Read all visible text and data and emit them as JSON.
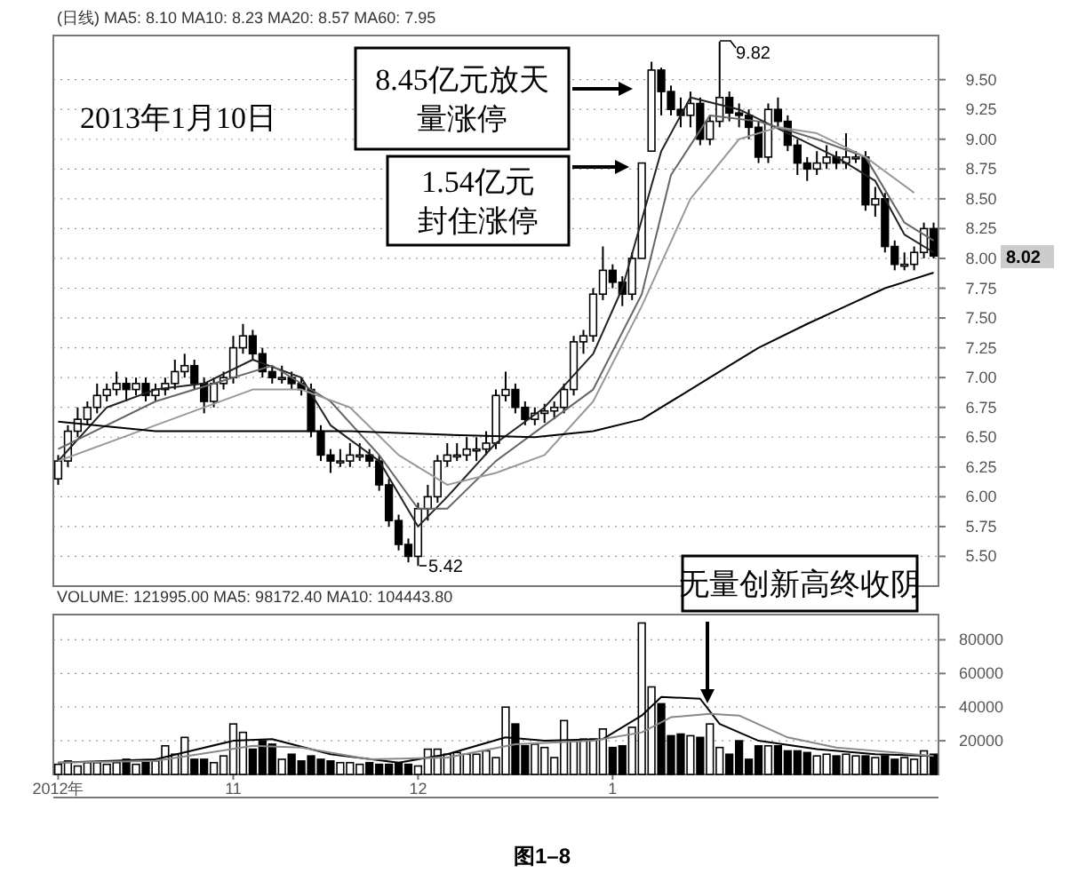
{
  "chart_data": [
    {
      "type": "candlestick",
      "title": "(日线) MA5: 8.10 MA10: 8.23 MA20: 8.57 MA60: 7.95",
      "grid": "y",
      "categories": [
        null,
        null,
        null,
        null,
        null,
        null,
        null,
        null,
        null,
        null,
        null,
        null,
        null,
        null,
        null,
        null,
        null,
        null,
        null,
        null,
        null,
        null,
        null,
        null,
        null,
        null,
        null,
        null,
        null,
        null,
        null,
        null,
        null,
        null,
        null,
        null,
        null,
        null,
        null,
        null,
        null,
        null,
        null,
        null,
        null,
        null,
        null,
        null,
        null,
        null,
        null,
        null,
        null,
        null,
        null,
        null,
        null,
        null,
        null,
        null,
        null,
        null,
        null,
        null,
        null,
        null,
        null,
        null,
        null,
        null,
        null,
        null,
        null,
        null,
        null,
        null,
        null,
        null,
        null,
        null,
        null,
        null,
        null,
        null,
        null,
        null,
        null,
        null,
        null,
        null,
        null
      ],
      "ylim": [
        5.25,
        9.87
      ],
      "yticks": [
        {
          "value": 5.5,
          "label": "5.50"
        },
        {
          "value": 5.75,
          "label": "5.75"
        },
        {
          "value": 6.0,
          "label": "6.00"
        },
        {
          "value": 6.25,
          "label": "6.25"
        },
        {
          "value": 6.5,
          "label": "6.50"
        },
        {
          "value": 6.75,
          "label": "6.75"
        },
        {
          "value": 7.0,
          "label": "7.00"
        },
        {
          "value": 7.25,
          "label": "7.25"
        },
        {
          "value": 7.5,
          "label": "7.50"
        },
        {
          "value": 7.75,
          "label": "7.75"
        },
        {
          "value": 8.0,
          "label": "8.00"
        },
        {
          "value": 8.25,
          "label": "8.25"
        },
        {
          "value": 8.5,
          "label": "8.50"
        },
        {
          "value": 8.75,
          "label": "8.75"
        },
        {
          "value": 9.0,
          "label": "9.00"
        },
        {
          "value": 9.25,
          "label": "9.25"
        },
        {
          "value": 9.5,
          "label": "9.50"
        }
      ],
      "ohlc": [
        [
          6.15,
          6.35,
          6.1,
          6.3
        ],
        [
          6.3,
          6.6,
          6.25,
          6.55
        ],
        [
          6.55,
          6.75,
          6.5,
          6.65
        ],
        [
          6.65,
          6.8,
          6.6,
          6.75
        ],
        [
          6.75,
          6.95,
          6.7,
          6.85
        ],
        [
          6.85,
          6.95,
          6.8,
          6.9
        ],
        [
          6.9,
          7.05,
          6.85,
          6.95
        ],
        [
          6.95,
          7.0,
          6.8,
          6.9
        ],
        [
          6.9,
          7.0,
          6.85,
          6.95
        ],
        [
          6.95,
          7.0,
          6.8,
          6.85
        ],
        [
          6.85,
          6.95,
          6.8,
          6.9
        ],
        [
          6.9,
          7.0,
          6.85,
          6.95
        ],
        [
          6.95,
          7.15,
          6.9,
          7.05
        ],
        [
          7.05,
          7.2,
          7.0,
          7.1
        ],
        [
          7.1,
          7.15,
          6.9,
          6.95
        ],
        [
          6.95,
          7.0,
          6.7,
          6.8
        ],
        [
          6.8,
          7.0,
          6.75,
          6.95
        ],
        [
          6.95,
          7.05,
          6.9,
          7.0
        ],
        [
          7.0,
          7.35,
          6.95,
          7.25
        ],
        [
          7.25,
          7.45,
          7.2,
          7.35
        ],
        [
          7.35,
          7.4,
          7.15,
          7.2
        ],
        [
          7.2,
          7.25,
          7.0,
          7.05
        ],
        [
          7.05,
          7.1,
          6.95,
          7.0
        ],
        [
          7.0,
          7.1,
          6.95,
          7.0
        ],
        [
          7.0,
          7.05,
          6.9,
          6.95
        ],
        [
          6.95,
          7.0,
          6.85,
          6.9
        ],
        [
          6.9,
          6.95,
          6.5,
          6.55
        ],
        [
          6.55,
          6.6,
          6.3,
          6.35
        ],
        [
          6.35,
          6.4,
          6.2,
          6.3
        ],
        [
          6.3,
          6.4,
          6.25,
          6.3
        ],
        [
          6.3,
          6.45,
          6.25,
          6.35
        ],
        [
          6.35,
          6.45,
          6.3,
          6.35
        ],
        [
          6.35,
          6.4,
          6.25,
          6.3
        ],
        [
          6.3,
          6.35,
          6.05,
          6.1
        ],
        [
          6.1,
          6.15,
          5.75,
          5.8
        ],
        [
          5.8,
          5.85,
          5.55,
          5.6
        ],
        [
          5.6,
          5.65,
          5.45,
          5.5
        ],
        [
          5.5,
          5.95,
          5.42,
          5.9
        ],
        [
          5.9,
          6.1,
          5.8,
          6.0
        ],
        [
          6.0,
          6.35,
          5.95,
          6.3
        ],
        [
          6.3,
          6.45,
          6.25,
          6.35
        ],
        [
          6.35,
          6.45,
          6.3,
          6.35
        ],
        [
          6.35,
          6.5,
          6.3,
          6.4
        ],
        [
          6.4,
          6.5,
          6.3,
          6.4
        ],
        [
          6.4,
          6.55,
          6.35,
          6.45
        ],
        [
          6.45,
          6.9,
          6.4,
          6.85
        ],
        [
          6.85,
          7.05,
          6.8,
          6.9
        ],
        [
          6.9,
          6.95,
          6.7,
          6.75
        ],
        [
          6.75,
          6.8,
          6.6,
          6.65
        ],
        [
          6.65,
          6.75,
          6.6,
          6.7
        ],
        [
          6.7,
          6.78,
          6.62,
          6.72
        ],
        [
          6.72,
          6.8,
          6.65,
          6.75
        ],
        [
          6.75,
          6.95,
          6.7,
          6.9
        ],
        [
          6.9,
          7.35,
          6.85,
          7.3
        ],
        [
          7.3,
          7.4,
          7.2,
          7.35
        ],
        [
          7.35,
          7.75,
          7.3,
          7.7
        ],
        [
          7.7,
          8.1,
          7.65,
          7.9
        ],
        [
          7.9,
          7.95,
          7.75,
          7.8
        ],
        [
          7.8,
          7.85,
          7.6,
          7.7
        ],
        [
          7.7,
          8.05,
          7.65,
          8.0
        ],
        [
          8.0,
          8.8,
          8.0,
          8.8
        ],
        [
          8.9,
          9.65,
          8.9,
          9.58
        ],
        [
          9.58,
          9.6,
          9.2,
          9.4
        ],
        [
          9.4,
          9.45,
          9.2,
          9.25
        ],
        [
          9.25,
          9.35,
          9.1,
          9.2
        ],
        [
          9.2,
          9.4,
          9.1,
          9.3
        ],
        [
          9.3,
          9.35,
          8.95,
          9.0
        ],
        [
          9.0,
          9.2,
          8.95,
          9.15
        ],
        [
          9.15,
          9.82,
          9.1,
          9.35
        ],
        [
          9.35,
          9.4,
          9.15,
          9.22
        ],
        [
          9.22,
          9.3,
          9.1,
          9.2
        ],
        [
          9.2,
          9.25,
          9.0,
          9.1
        ],
        [
          9.1,
          9.15,
          8.8,
          8.85
        ],
        [
          8.85,
          9.3,
          8.8,
          9.25
        ],
        [
          9.25,
          9.35,
          9.1,
          9.15
        ],
        [
          9.15,
          9.2,
          8.9,
          8.95
        ],
        [
          8.95,
          9.0,
          8.7,
          8.8
        ],
        [
          8.8,
          8.85,
          8.65,
          8.75
        ],
        [
          8.75,
          8.9,
          8.7,
          8.8
        ],
        [
          8.8,
          8.95,
          8.75,
          8.85
        ],
        [
          8.85,
          8.9,
          8.75,
          8.8
        ],
        [
          8.8,
          9.05,
          8.75,
          8.85
        ],
        [
          8.85,
          8.9,
          8.8,
          8.85
        ],
        [
          8.85,
          8.9,
          8.4,
          8.45
        ],
        [
          8.45,
          8.6,
          8.35,
          8.5
        ],
        [
          8.5,
          8.55,
          8.05,
          8.1
        ],
        [
          8.1,
          8.15,
          7.9,
          7.95
        ],
        [
          7.95,
          8.05,
          7.9,
          7.95
        ],
        [
          7.95,
          8.1,
          7.9,
          8.05
        ],
        [
          8.05,
          8.3,
          8.0,
          8.25
        ],
        [
          8.25,
          8.3,
          8.0,
          8.02
        ]
      ],
      "series": [
        {
          "type": "line",
          "color": "#222222",
          "values": [
            6.3,
            null,
            null,
            null,
            null,
            6.75,
            null,
            null,
            null,
            null,
            6.9,
            null,
            null,
            null,
            null,
            6.95,
            null,
            null,
            null,
            null,
            7.15,
            null,
            null,
            null,
            null,
            7.0,
            null,
            null,
            6.6,
            null,
            null,
            null,
            null,
            6.3,
            null,
            null,
            null,
            5.75,
            null,
            null,
            6.0,
            null,
            null,
            null,
            null,
            6.45,
            null,
            null,
            null,
            null,
            6.75,
            null,
            null,
            null,
            null,
            7.2,
            null,
            null,
            7.75,
            null,
            null,
            null,
            8.9,
            null,
            null,
            9.35,
            null,
            null,
            null,
            null,
            9.25,
            null,
            null,
            null,
            null,
            9.05,
            null,
            null,
            null,
            null,
            8.85,
            null,
            null,
            null,
            8.65,
            null,
            null,
            8.2,
            null,
            null,
            8.05
          ]
        },
        {
          "type": "line",
          "color": "#666666",
          "values": [
            6.4,
            null,
            null,
            null,
            null,
            null,
            null,
            null,
            null,
            null,
            6.8,
            null,
            null,
            null,
            null,
            null,
            null,
            null,
            7.0,
            null,
            null,
            null,
            7.1,
            null,
            null,
            null,
            null,
            null,
            6.8,
            null,
            null,
            null,
            null,
            6.35,
            null,
            null,
            null,
            5.9,
            null,
            null,
            5.9,
            null,
            null,
            null,
            null,
            6.3,
            null,
            null,
            null,
            null,
            6.6,
            null,
            null,
            null,
            null,
            6.9,
            null,
            null,
            null,
            null,
            7.7,
            null,
            null,
            8.7,
            null,
            null,
            null,
            9.2,
            null,
            null,
            null,
            null,
            9.15,
            null,
            null,
            null,
            null,
            null,
            9.0,
            null,
            null,
            null,
            null,
            8.85,
            null,
            null,
            null,
            8.3,
            null,
            null,
            8.15
          ]
        },
        {
          "type": "line",
          "color": "#999999",
          "values": [
            6.3,
            null,
            null,
            null,
            null,
            null,
            null,
            null,
            null,
            null,
            6.6,
            null,
            null,
            null,
            null,
            null,
            null,
            null,
            null,
            null,
            6.9,
            null,
            null,
            null,
            null,
            6.9,
            null,
            null,
            null,
            null,
            6.75,
            null,
            null,
            null,
            null,
            6.35,
            null,
            null,
            null,
            null,
            6.1,
            null,
            null,
            null,
            null,
            6.2,
            null,
            null,
            null,
            null,
            6.35,
            null,
            null,
            null,
            null,
            6.8,
            null,
            null,
            null,
            null,
            7.6,
            null,
            null,
            null,
            null,
            8.5,
            null,
            null,
            null,
            null,
            9.0,
            null,
            null,
            null,
            9.1,
            null,
            null,
            null,
            9.05,
            null,
            null,
            null,
            null,
            8.85,
            null,
            null,
            null,
            null,
            8.55,
            null,
            null
          ]
        },
        {
          "type": "line",
          "color": "#000000",
          "values": [
            6.63,
            null,
            null,
            null,
            null,
            null,
            null,
            null,
            null,
            null,
            6.55,
            null,
            null,
            null,
            null,
            null,
            null,
            null,
            null,
            null,
            6.55,
            null,
            null,
            null,
            null,
            null,
            null,
            null,
            null,
            null,
            6.55,
            null,
            null,
            null,
            null,
            null,
            null,
            null,
            null,
            null,
            6.52,
            null,
            null,
            null,
            null,
            null,
            null,
            null,
            null,
            6.5,
            null,
            null,
            null,
            null,
            null,
            6.55,
            null,
            null,
            null,
            null,
            6.65,
            null,
            null,
            null,
            6.85,
            null,
            null,
            null,
            7.05,
            null,
            null,
            null,
            7.25,
            null,
            null,
            null,
            null,
            7.45,
            null,
            null,
            null,
            7.6,
            null,
            null,
            null,
            7.75,
            null,
            null,
            null,
            null,
            7.88
          ]
        }
      ],
      "annotations": [
        "2013年1月10日",
        "8.45亿元放天量涨停",
        "1.54亿元封住涨停",
        "9.82",
        "5.42",
        "8.02"
      ]
    },
    {
      "type": "bar",
      "title": "VOLUME: 121995.00 MA5: 98172.40 MA10: 104443.80",
      "grid": "y",
      "categories": [
        "2012年",
        null,
        null,
        null,
        null,
        null,
        null,
        null,
        null,
        null,
        null,
        null,
        null,
        null,
        null,
        null,
        null,
        null,
        "11",
        null,
        null,
        null,
        null,
        null,
        null,
        null,
        null,
        null,
        null,
        null,
        null,
        null,
        null,
        null,
        null,
        null,
        null,
        "12",
        null,
        null,
        null,
        null,
        null,
        null,
        null,
        null,
        null,
        null,
        null,
        null,
        null,
        null,
        null,
        null,
        null,
        null,
        null,
        "1",
        null,
        null,
        null,
        null,
        null,
        null,
        null,
        null,
        null,
        null,
        null,
        null,
        null,
        null,
        null,
        null,
        null,
        null,
        null,
        null,
        null,
        null,
        null,
        null,
        null,
        null,
        null,
        null,
        null,
        null,
        null,
        null,
        null
      ],
      "ylim": [
        0,
        95000
      ],
      "yticks": [
        20000,
        40000,
        60000,
        80000
      ],
      "values": [
        6000,
        8000,
        5000,
        7000,
        7000,
        6000,
        7000,
        9000,
        6000,
        7000,
        8000,
        17000,
        12000,
        22000,
        9000,
        9000,
        7000,
        11000,
        30000,
        25000,
        15000,
        20000,
        18000,
        9000,
        12000,
        8000,
        11000,
        9000,
        8000,
        7000,
        7000,
        6000,
        7000,
        6000,
        6000,
        7000,
        6000,
        5000,
        15000,
        15000,
        12000,
        13000,
        12000,
        12000,
        14000,
        10000,
        40000,
        30000,
        17000,
        18000,
        16000,
        10000,
        32000,
        20000,
        21000,
        21000,
        27000,
        16000,
        17000,
        28000,
        90000,
        52000,
        42000,
        23000,
        24000,
        23000,
        22000,
        30000,
        16000,
        12000,
        20000,
        9000,
        17000,
        17000,
        17000,
        14000,
        14000,
        13000,
        11000,
        12000,
        11000,
        12000,
        11000,
        11000,
        10000,
        11000,
        9000,
        10000,
        9000,
        14000,
        12000
      ],
      "colors": [
        "#ffffff",
        "#ffffff",
        "#ffffff",
        "#ffffff",
        "#ffffff",
        "#ffffff",
        "#ffffff",
        "#000000",
        "#ffffff",
        "#000000",
        "#ffffff",
        "#ffffff",
        "#ffffff",
        "#ffffff",
        "#000000",
        "#000000",
        "#ffffff",
        "#ffffff",
        "#ffffff",
        "#ffffff",
        "#000000",
        "#000000",
        "#000000",
        "#ffffff",
        "#000000",
        "#000000",
        "#000000",
        "#000000",
        "#000000",
        "#ffffff",
        "#ffffff",
        "#ffffff",
        "#000000",
        "#000000",
        "#000000",
        "#000000",
        "#000000",
        "#ffffff",
        "#ffffff",
        "#ffffff",
        "#ffffff",
        "#ffffff",
        "#ffffff",
        "#ffffff",
        "#ffffff",
        "#ffffff",
        "#ffffff",
        "#000000",
        "#000000",
        "#ffffff",
        "#ffffff",
        "#ffffff",
        "#ffffff",
        "#ffffff",
        "#ffffff",
        "#ffffff",
        "#ffffff",
        "#000000",
        "#000000",
        "#ffffff",
        "#ffffff",
        "#ffffff",
        "#000000",
        "#000000",
        "#000000",
        "#ffffff",
        "#000000",
        "#ffffff",
        "#ffffff",
        "#000000",
        "#000000",
        "#000000",
        "#000000",
        "#ffffff",
        "#000000",
        "#000000",
        "#000000",
        "#000000",
        "#ffffff",
        "#ffffff",
        "#000000",
        "#ffffff",
        "#ffffff",
        "#000000",
        "#ffffff",
        "#000000",
        "#000000",
        "#ffffff",
        "#ffffff",
        "#ffffff",
        "#000000"
      ],
      "series": [
        {
          "type": "line",
          "color": "#000000",
          "values": [
            7000,
            null,
            null,
            null,
            null,
            null,
            null,
            null,
            null,
            null,
            9000,
            null,
            null,
            null,
            null,
            null,
            null,
            null,
            20000,
            null,
            null,
            null,
            21000,
            null,
            null,
            null,
            null,
            null,
            12000,
            null,
            null,
            null,
            null,
            null,
            null,
            7000,
            null,
            null,
            null,
            null,
            12000,
            null,
            null,
            null,
            null,
            null,
            22000,
            null,
            null,
            null,
            20000,
            null,
            null,
            null,
            null,
            null,
            21000,
            null,
            null,
            null,
            35000,
            null,
            46000,
            null,
            null,
            null,
            45000,
            null,
            30000,
            null,
            null,
            null,
            20000,
            null,
            null,
            null,
            null,
            null,
            15000,
            null,
            null,
            null,
            null,
            null,
            12000,
            null,
            null,
            null,
            null,
            null,
            11000
          ]
        },
        {
          "type": "line",
          "color": "#888888",
          "values": [
            7000,
            null,
            null,
            null,
            null,
            null,
            null,
            null,
            null,
            null,
            8000,
            null,
            null,
            null,
            null,
            null,
            null,
            null,
            null,
            null,
            17000,
            null,
            null,
            null,
            null,
            16000,
            null,
            null,
            null,
            null,
            null,
            null,
            9000,
            null,
            null,
            null,
            null,
            null,
            null,
            null,
            10000,
            null,
            null,
            null,
            null,
            null,
            null,
            18000,
            null,
            null,
            null,
            null,
            null,
            null,
            null,
            20000,
            null,
            null,
            null,
            null,
            25000,
            null,
            null,
            34000,
            null,
            null,
            null,
            36000,
            null,
            null,
            35000,
            null,
            null,
            null,
            null,
            22000,
            null,
            null,
            null,
            null,
            16000,
            null,
            null,
            null,
            null,
            null,
            null,
            null,
            null,
            null,
            11000
          ]
        }
      ],
      "annotations": [
        "无量创新高终收阴",
        "图1–8"
      ]
    }
  ]
}
